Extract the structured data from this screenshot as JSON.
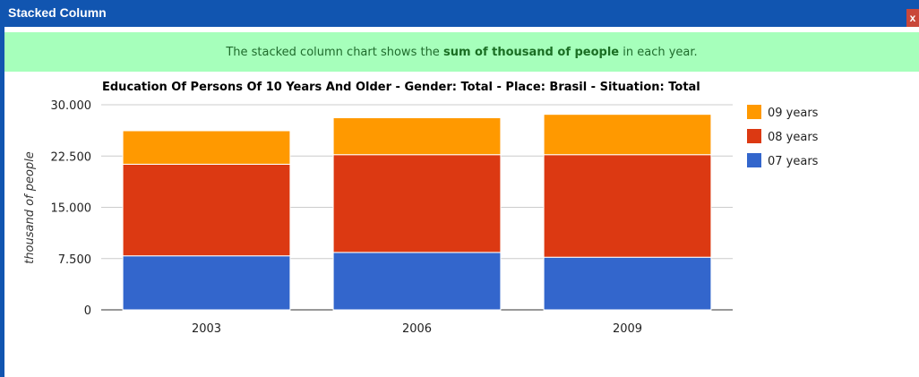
{
  "window": {
    "title": "Stacked Column",
    "close_label": "x"
  },
  "info": {
    "prefix": "The stacked column chart shows the ",
    "highlight": "sum of thousand of people",
    "suffix": " in each year."
  },
  "colors": {
    "titlebar": "#1155b0",
    "infobar": "#a6ffbb",
    "series_07": "#3366cc",
    "series_08": "#dc3912",
    "series_09": "#ff9900"
  },
  "chart_data": {
    "type": "bar",
    "stacked": true,
    "title": "Education Of Persons Of 10 Years And Older - Gender: Total - Place: Brasil - Situation: Total",
    "xlabel": "",
    "ylabel": "thousand of people",
    "ylim": [
      0,
      30000
    ],
    "yticks": [
      0,
      7500,
      15000,
      22500,
      30000
    ],
    "ytick_labels": [
      "0",
      "7.500",
      "15.000",
      "22.500",
      "30.000"
    ],
    "categories": [
      "2003",
      "2006",
      "2009"
    ],
    "series": [
      {
        "name": "07 years",
        "color": "#3366cc",
        "values": [
          7900,
          8400,
          7700
        ]
      },
      {
        "name": "08 years",
        "color": "#dc3912",
        "values": [
          13400,
          14300,
          15000
        ]
      },
      {
        "name": "09 years",
        "color": "#ff9900",
        "values": [
          4900,
          5400,
          5900
        ]
      }
    ],
    "legend_position": "right",
    "legend_order": [
      "09 years",
      "08 years",
      "07 years"
    ],
    "grid": true
  }
}
